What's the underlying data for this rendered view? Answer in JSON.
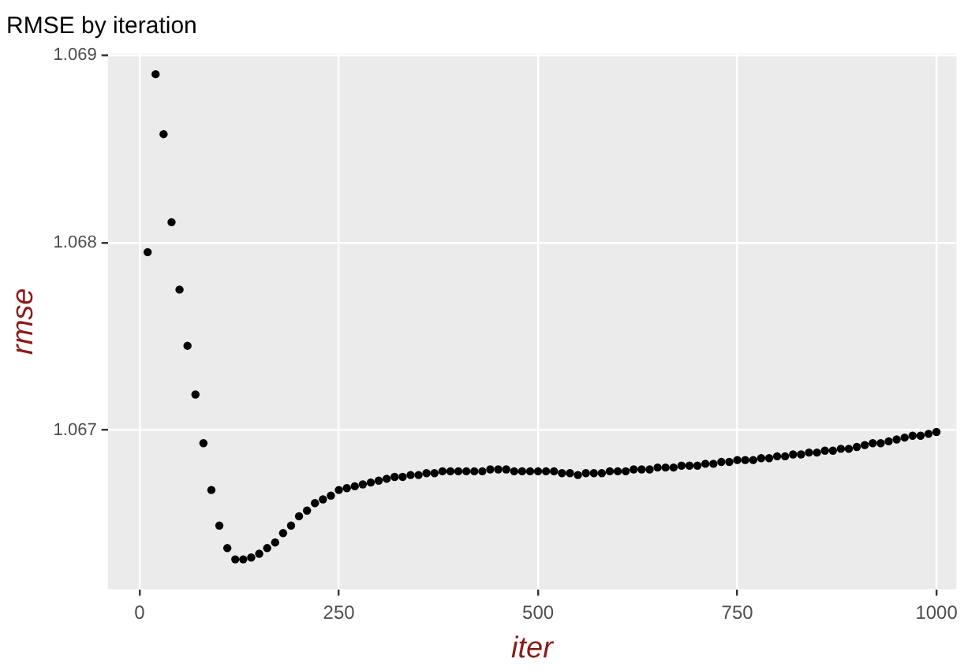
{
  "chart_data": {
    "type": "scatter",
    "title": "RMSE by iteration",
    "xlabel": "iter",
    "ylabel": "rmse",
    "x": [
      10,
      20,
      30,
      40,
      50,
      60,
      70,
      80,
      90,
      100,
      110,
      120,
      130,
      140,
      150,
      160,
      170,
      180,
      190,
      200,
      210,
      220,
      230,
      240,
      250,
      260,
      270,
      280,
      290,
      300,
      310,
      320,
      330,
      340,
      350,
      360,
      370,
      380,
      390,
      400,
      410,
      420,
      430,
      440,
      450,
      460,
      470,
      480,
      490,
      500,
      510,
      520,
      530,
      540,
      550,
      560,
      570,
      580,
      590,
      600,
      610,
      620,
      630,
      640,
      650,
      660,
      670,
      680,
      690,
      700,
      710,
      720,
      730,
      740,
      750,
      760,
      770,
      780,
      790,
      800,
      810,
      820,
      830,
      840,
      850,
      860,
      870,
      880,
      890,
      900,
      910,
      920,
      930,
      940,
      950,
      960,
      970,
      980,
      990,
      1000
    ],
    "series": [
      {
        "color": "#000000",
        "values": [
          1.06795,
          1.0689,
          1.06858,
          1.06811,
          1.06775,
          1.06745,
          1.06719,
          1.06693,
          1.06668,
          1.06649,
          1.06637,
          1.06631,
          1.06631,
          1.06632,
          1.06634,
          1.06637,
          1.0664,
          1.06645,
          1.06649,
          1.06654,
          1.06657,
          1.06661,
          1.06663,
          1.06665,
          1.06668,
          1.06669,
          1.0667,
          1.06671,
          1.06672,
          1.06673,
          1.06674,
          1.06675,
          1.06675,
          1.06676,
          1.06676,
          1.06677,
          1.06677,
          1.06678,
          1.06678,
          1.06678,
          1.06678,
          1.06678,
          1.06678,
          1.06679,
          1.06679,
          1.06679,
          1.06678,
          1.06678,
          1.06678,
          1.06678,
          1.06678,
          1.06678,
          1.06677,
          1.06677,
          1.06676,
          1.06677,
          1.06677,
          1.06677,
          1.06678,
          1.06678,
          1.06678,
          1.06679,
          1.06679,
          1.06679,
          1.0668,
          1.0668,
          1.0668,
          1.06681,
          1.06681,
          1.06681,
          1.06682,
          1.06682,
          1.06683,
          1.06683,
          1.06684,
          1.06684,
          1.06684,
          1.06685,
          1.06685,
          1.06686,
          1.06686,
          1.06687,
          1.06687,
          1.06688,
          1.06688,
          1.06689,
          1.06689,
          1.0669,
          1.0669,
          1.06691,
          1.06692,
          1.06693,
          1.06693,
          1.06694,
          1.06695,
          1.06696,
          1.06697,
          1.06697,
          1.06698,
          1.06699
        ]
      }
    ],
    "xlim": [
      -40,
      1025
    ],
    "ylim": [
      1.06615,
      1.06901
    ],
    "xticks": [
      0,
      250,
      500,
      750,
      1000
    ],
    "yticks": [
      1.067,
      1.068,
      1.069
    ],
    "grid": true,
    "legend": false,
    "marker": "circle"
  }
}
